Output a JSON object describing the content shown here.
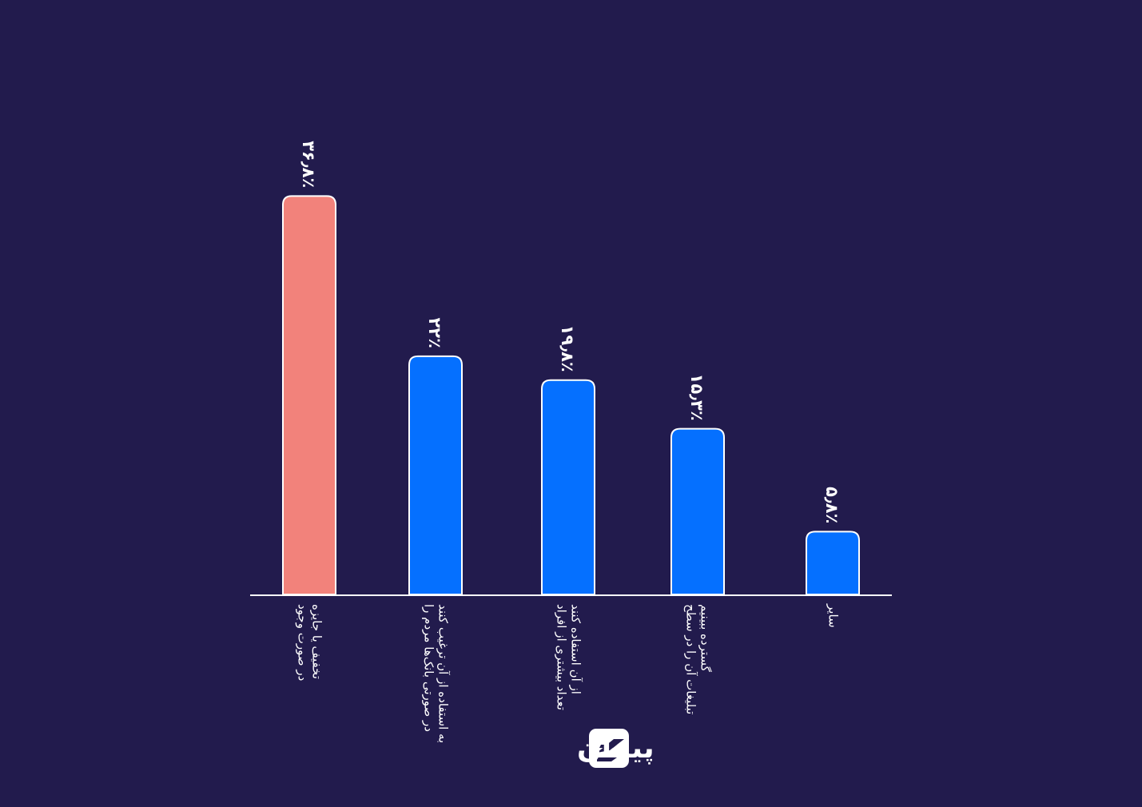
{
  "chart_data": {
    "type": "bar",
    "categories": [
      [
        "در صورت وجود",
        "تخفیف یا جایزه"
      ],
      [
        "در صورتی بانک‌ها مردم را",
        "به استفاده از آن ترغیب کنند"
      ],
      [
        "تعداد بیشتری از افراد",
        "از آن استفاده کنند"
      ],
      [
        "تبلیغات آن را در سطح",
        "گسترده ببینیم"
      ],
      [
        "سایر"
      ]
    ],
    "values": [
      36.8,
      22,
      19.8,
      15.3,
      5.8
    ],
    "value_labels": [
      "۳۶٫۸٪",
      "۲۲٪",
      "۱۹٫۸٪",
      "۱۵٫۳٪",
      "۵٫۸٪"
    ],
    "highlight_index": 0,
    "ylim": [
      0,
      40
    ],
    "colors": {
      "background": "#221b4d",
      "highlight": "#f2827b",
      "bar": "#0570ff",
      "outline": "#ffffff",
      "axis": "#ffffff"
    }
  },
  "brand": {
    "name": "پیمان",
    "logo_icon": "payman-logo-icon"
  }
}
